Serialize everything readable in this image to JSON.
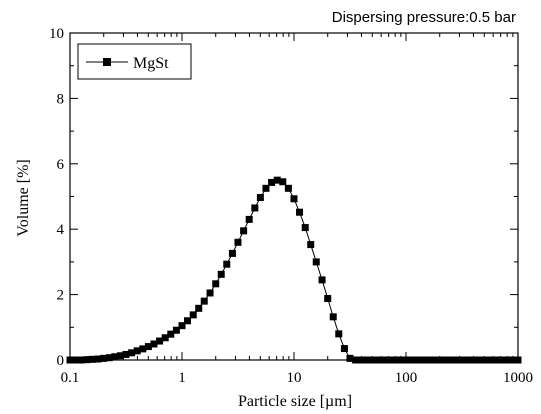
{
  "chart_data": {
    "type": "line",
    "annotation": "Dispersing pressure:0.5 bar",
    "xlabel": "Particle size [µm]",
    "ylabel": "Volume [%]",
    "x_scale": "log",
    "xlim": [
      0.1,
      1000
    ],
    "ylim": [
      0,
      10
    ],
    "x_ticks": [
      {
        "value": 0.1,
        "label": "0.1"
      },
      {
        "value": 1,
        "label": "1"
      },
      {
        "value": 10,
        "label": "10"
      },
      {
        "value": 100,
        "label": "100"
      },
      {
        "value": 1000,
        "label": "1000"
      }
    ],
    "y_ticks": [
      {
        "value": 0,
        "label": "0"
      },
      {
        "value": 2,
        "label": "2"
      },
      {
        "value": 4,
        "label": "4"
      },
      {
        "value": 6,
        "label": "6"
      },
      {
        "value": 8,
        "label": "8"
      },
      {
        "value": 10,
        "label": "10"
      }
    ],
    "grid": false,
    "legend_position": "top-left",
    "colors": {
      "line": "#000000",
      "marker": "#000000",
      "axis": "#000000"
    },
    "series": [
      {
        "name": "MgSt",
        "marker": "square",
        "x": [
          0.1,
          0.112,
          0.126,
          0.141,
          0.158,
          0.178,
          0.2,
          0.224,
          0.251,
          0.282,
          0.316,
          0.355,
          0.398,
          0.447,
          0.501,
          0.562,
          0.631,
          0.708,
          0.794,
          0.891,
          1.0,
          1.12,
          1.26,
          1.41,
          1.58,
          1.78,
          2.0,
          2.24,
          2.51,
          2.82,
          3.16,
          3.55,
          3.98,
          4.47,
          5.01,
          5.62,
          6.31,
          7.08,
          7.94,
          8.91,
          10.0,
          11.2,
          12.6,
          14.1,
          15.8,
          17.8,
          20.0,
          22.4,
          25.1,
          28.2,
          31.6,
          35.5,
          39.8,
          44.7,
          50.1,
          56.2,
          63.1,
          70.8,
          79.4,
          89.1,
          100,
          112,
          126,
          141,
          158,
          178,
          200,
          224,
          251,
          282,
          316,
          355,
          398,
          447,
          501,
          562,
          631,
          708,
          794,
          891,
          1000
        ],
        "y": [
          0.0,
          0.0,
          0.0,
          0.01,
          0.02,
          0.03,
          0.05,
          0.07,
          0.1,
          0.13,
          0.17,
          0.22,
          0.28,
          0.34,
          0.41,
          0.49,
          0.58,
          0.68,
          0.79,
          0.91,
          1.05,
          1.2,
          1.38,
          1.58,
          1.8,
          2.05,
          2.33,
          2.62,
          2.93,
          3.26,
          3.6,
          3.95,
          4.3,
          4.65,
          4.97,
          5.25,
          5.43,
          5.5,
          5.45,
          5.25,
          4.93,
          4.52,
          4.05,
          3.53,
          3.0,
          2.45,
          1.88,
          1.32,
          0.8,
          0.35,
          0.05,
          0.0,
          0.0,
          0.0,
          0.0,
          0.0,
          0.0,
          0.0,
          0.0,
          0.0,
          0.0,
          0.0,
          0.0,
          0.0,
          0.0,
          0.0,
          0.0,
          0.0,
          0.0,
          0.0,
          0.0,
          0.0,
          0.0,
          0.0,
          0.0,
          0.0,
          0.0,
          0.0,
          0.0,
          0.0,
          0.0
        ]
      }
    ]
  }
}
